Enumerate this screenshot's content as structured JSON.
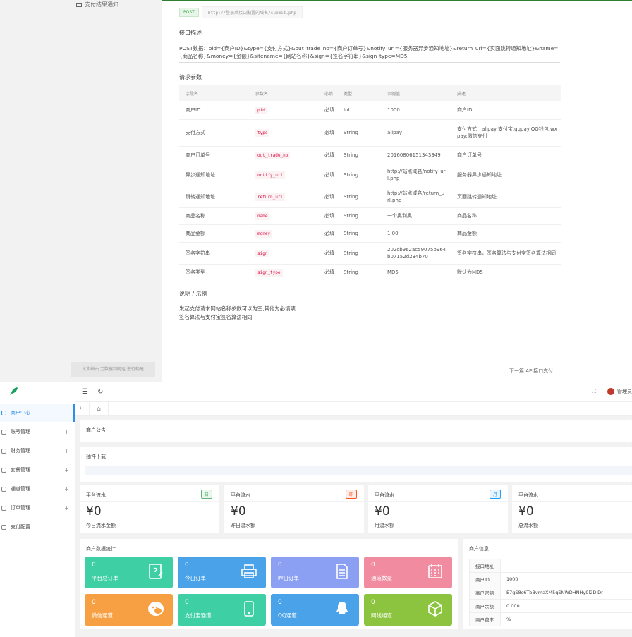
{
  "doc": {
    "sidebar_notification": "支付结果通知",
    "sidebar_footnote": "本文档由 刀数据到网运 进行构建",
    "post_badge": "POST",
    "post_url": "http://登录后接口配置的域名/submit.php",
    "interface_desc_title": "接口描述",
    "post_data": "POST数据：pid={商户ID}&type={支付方式}&out_trade_no={商户订单号}&notify_url={服务器异步通知地址}&return_url={页面跳转通知地址}&name={商品名称}&money={金额}&sitename={网站名称}&sign={签名字符串}&sign_type=MD5",
    "params_title": "请求参数",
    "table_headers": [
      "字段名",
      "参数名",
      "必填",
      "类型",
      "示例值",
      "描述"
    ],
    "rows": [
      {
        "field": "商户ID",
        "param": "pid",
        "required": "必填",
        "type": "Int",
        "example": "1000",
        "desc": "商户ID"
      },
      {
        "field": "支付方式",
        "param": "type",
        "required": "必填",
        "type": "String",
        "example": "alipay",
        "desc": "支付方式：alipay:支付宝,qqpay:QQ钱包,wxpay:微信支付"
      },
      {
        "field": "商户订单号",
        "param": "out_trade_no",
        "required": "必填",
        "type": "String",
        "example": "20160806151343349",
        "desc": "商户订单号"
      },
      {
        "field": "异步通知地址",
        "param": "notify_url",
        "required": "必填",
        "type": "String",
        "example": "http://站点域名/notify_url.php",
        "desc": "服务器异步通知地址"
      },
      {
        "field": "跳转通知地址",
        "param": "return_url",
        "required": "必填",
        "type": "String",
        "example": "http://站点域名/return_url.php",
        "desc": "页面跳转通知地址"
      },
      {
        "field": "商品名称",
        "param": "name",
        "required": "必填",
        "type": "String",
        "example": "一个奥利奥",
        "desc": "商品名称"
      },
      {
        "field": "商品金额",
        "param": "money",
        "required": "必填",
        "type": "String",
        "example": "1.00",
        "desc": "商品金额"
      },
      {
        "field": "签名字符串",
        "param": "sign",
        "required": "必填",
        "type": "String",
        "example": "202cb962ac59075b964b07152d234b70",
        "desc": "签名字符串，签名算法与支付宝签名算法相同"
      },
      {
        "field": "签名类型",
        "param": "sign_type",
        "required": "必填",
        "type": "String",
        "example": "MD5",
        "desc": "默认为MD5"
      }
    ],
    "notes_title": "说明 / 示例",
    "note1": "发起支付请求网站名称参数可以为空,其他为必填项",
    "note2": "签名算法与支付宝签名算法相同",
    "next_link": "下一篇 API接口支付"
  },
  "admin": {
    "menu": [
      {
        "label": "商户中心",
        "has_plus": false
      },
      {
        "label": "账号管理",
        "has_plus": true
      },
      {
        "label": "财务管理",
        "has_plus": true
      },
      {
        "label": "套餐管理",
        "has_plus": true
      },
      {
        "label": "通道管理",
        "has_plus": true
      },
      {
        "label": "订单管理",
        "has_plus": true
      },
      {
        "label": "支付配置",
        "has_plus": false
      }
    ],
    "plus": "+",
    "header_user": "管理员",
    "notice_title": "商户公告",
    "download_title": "插件下载",
    "stats": [
      {
        "title": "平台流水",
        "tag": "日",
        "tag_color": "#5fb878",
        "tag_bg": "#eaf7ee",
        "value": "¥0",
        "sub": "今日流水金额"
      },
      {
        "title": "平台流水",
        "tag": "昨",
        "tag_color": "#ff5722",
        "tag_bg": "#fdecea",
        "value": "¥0",
        "sub": "昨日流水额"
      },
      {
        "title": "平台流水",
        "tag": "月",
        "tag_color": "#1e9fff",
        "tag_bg": "#e8f3fe",
        "value": "¥0",
        "sub": "月流水额"
      },
      {
        "title": "平台流水",
        "tag": "",
        "tag_color": "#fff",
        "tag_bg": "#fff",
        "value": "¥0",
        "sub": "总流水额"
      }
    ],
    "data_stats_title": "商户数据统计",
    "tiles": [
      {
        "value": "0",
        "label": "平台总订单",
        "color": "#3ecfa4",
        "icon": "edit-doc-icon"
      },
      {
        "value": "0",
        "label": "今日订单",
        "color": "#4aa3e8",
        "icon": "printer-icon"
      },
      {
        "value": "0",
        "label": "昨日订单",
        "color": "#8b9ff3",
        "icon": "document-icon"
      },
      {
        "value": "0",
        "label": "通道数量",
        "color": "#f08ba0",
        "icon": "calendar-icon"
      },
      {
        "value": "0",
        "label": "微信通道",
        "color": "#f7a043",
        "icon": "wechat-icon"
      },
      {
        "value": "0",
        "label": "支付宝通道",
        "color": "#3ecfa4",
        "icon": "phone-icon"
      },
      {
        "value": "0",
        "label": "QQ通道",
        "color": "#4aa3e8",
        "icon": "qq-icon"
      },
      {
        "value": "0",
        "label": "网线通道",
        "color": "#8cc43f",
        "icon": "cube-icon"
      }
    ],
    "merchant_info_title": "商户信息",
    "info_rows": [
      {
        "k": "接口地址",
        "v": ""
      },
      {
        "k": "商户ID",
        "v": "1000"
      },
      {
        "k": "商户密钥",
        "v": "E7gS8c6TbBvmaXM5qSNWDHNHy9l2DiDr"
      },
      {
        "k": "商户余额",
        "v": "0.000"
      },
      {
        "k": "商户费率",
        "v": "%"
      }
    ]
  }
}
